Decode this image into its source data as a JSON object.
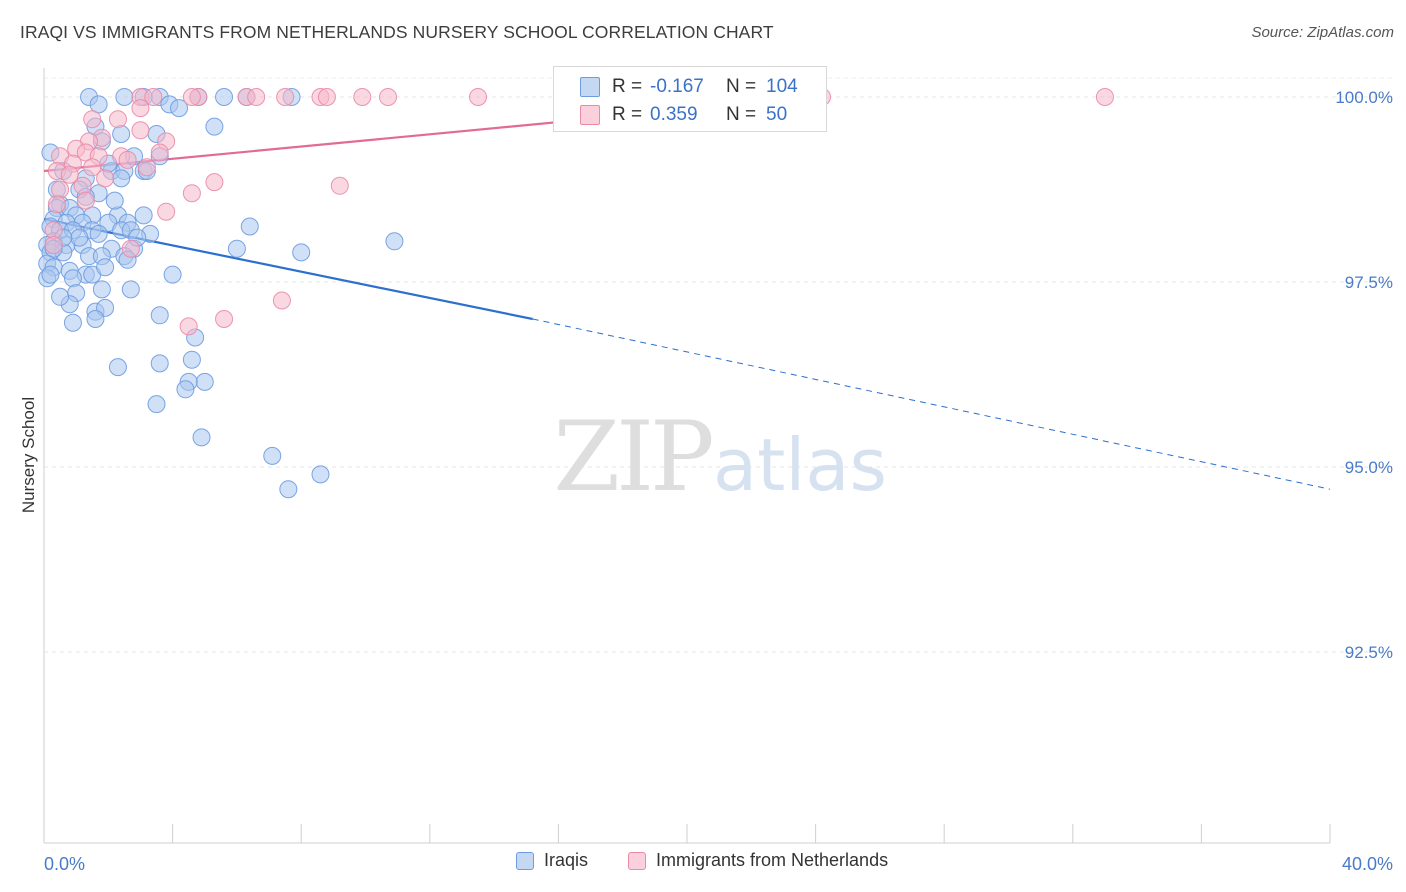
{
  "header": {
    "title": "IRAQI VS IMMIGRANTS FROM NETHERLANDS NURSERY SCHOOL CORRELATION CHART",
    "source": "Source: ZipAtlas.com"
  },
  "watermark": {
    "zip": "ZIP",
    "atlas": "atlas"
  },
  "stats": [
    {
      "r_label": "R =",
      "r_value": "-0.167",
      "n_label": "N =",
      "n_value": "104",
      "color": "#a9c6ef",
      "border": "#6d9be0"
    },
    {
      "r_label": "R =",
      "r_value": "0.359",
      "n_label": "N =",
      "n_value": "50",
      "color": "#f6b8cb",
      "border": "#e98aa8"
    }
  ],
  "legend": [
    {
      "label": "Iraqis",
      "color": "#a9c6ef",
      "border": "#6d9be0"
    },
    {
      "label": "Immigrants from Netherlands",
      "color": "#f6b8cb",
      "border": "#e98aa8"
    }
  ],
  "chart_data": {
    "type": "scatter",
    "title": "IRAQI VS IMMIGRANTS FROM NETHERLANDS NURSERY SCHOOL CORRELATION CHART",
    "xlabel": "",
    "ylabel": "Nursery School",
    "xlim": [
      0,
      40
    ],
    "ylim": [
      90.0,
      100.3
    ],
    "x_ticks": [
      0,
      4,
      8,
      12,
      16,
      20,
      24,
      28,
      32,
      36,
      40
    ],
    "x_tick_labels": {
      "0": "0.0%",
      "40": "40.0%"
    },
    "y_ticks": [
      92.5,
      95.0,
      97.5,
      100.0
    ],
    "y_tick_labels": [
      "92.5%",
      "95.0%",
      "97.5%",
      "100.0%"
    ],
    "grid": true,
    "legend_position": "bottom-center",
    "series": [
      {
        "name": "Iraqis",
        "color": "#6d9be0",
        "fill": "#a9c6ef",
        "trend": {
          "x": [
            0,
            15.2
          ],
          "y": [
            98.35,
            97.0
          ],
          "dashed_to_x": 40,
          "dashed_end_y": 94.7,
          "color": "#2d6fcf"
        },
        "points": [
          [
            1.4,
            100.0
          ],
          [
            2.5,
            100.0
          ],
          [
            3.6,
            100.0
          ],
          [
            4.8,
            100.0
          ],
          [
            5.6,
            100.0
          ],
          [
            6.3,
            100.0
          ],
          [
            7.7,
            100.0
          ],
          [
            3.1,
            100.0
          ],
          [
            1.7,
            99.9
          ],
          [
            3.9,
            99.9
          ],
          [
            4.2,
            99.85
          ],
          [
            1.6,
            99.6
          ],
          [
            5.3,
            99.6
          ],
          [
            2.4,
            99.5
          ],
          [
            3.5,
            99.5
          ],
          [
            1.8,
            99.4
          ],
          [
            2.8,
            99.2
          ],
          [
            3.6,
            99.2
          ],
          [
            2.1,
            99.0
          ],
          [
            2.5,
            99.0
          ],
          [
            3.1,
            99.0
          ],
          [
            0.6,
            99.0
          ],
          [
            1.3,
            98.9
          ],
          [
            2.4,
            98.9
          ],
          [
            1.1,
            98.75
          ],
          [
            1.7,
            98.7
          ],
          [
            1.3,
            98.65
          ],
          [
            0.5,
            98.55
          ],
          [
            0.4,
            98.5
          ],
          [
            0.8,
            98.5
          ],
          [
            1.0,
            98.4
          ],
          [
            1.5,
            98.4
          ],
          [
            2.3,
            98.4
          ],
          [
            3.1,
            98.4
          ],
          [
            0.3,
            98.35
          ],
          [
            0.7,
            98.3
          ],
          [
            1.2,
            98.3
          ],
          [
            2.0,
            98.3
          ],
          [
            2.6,
            98.3
          ],
          [
            0.2,
            98.25
          ],
          [
            0.5,
            98.2
          ],
          [
            0.9,
            98.2
          ],
          [
            1.5,
            98.2
          ],
          [
            2.4,
            98.2
          ],
          [
            2.7,
            98.2
          ],
          [
            3.3,
            98.15
          ],
          [
            6.4,
            98.25
          ],
          [
            10.9,
            98.05
          ],
          [
            0.3,
            98.05
          ],
          [
            0.7,
            98.0
          ],
          [
            1.2,
            98.0
          ],
          [
            0.1,
            98.0
          ],
          [
            2.1,
            97.95
          ],
          [
            2.8,
            97.95
          ],
          [
            6.0,
            97.95
          ],
          [
            8.0,
            97.9
          ],
          [
            0.2,
            97.9
          ],
          [
            0.6,
            97.9
          ],
          [
            1.4,
            97.85
          ],
          [
            1.8,
            97.85
          ],
          [
            2.5,
            97.85
          ],
          [
            2.6,
            97.8
          ],
          [
            0.1,
            97.75
          ],
          [
            0.3,
            97.7
          ],
          [
            0.8,
            97.65
          ],
          [
            1.3,
            97.6
          ],
          [
            1.5,
            97.6
          ],
          [
            0.9,
            97.55
          ],
          [
            0.1,
            97.55
          ],
          [
            4.0,
            97.6
          ],
          [
            1.0,
            97.35
          ],
          [
            1.8,
            97.4
          ],
          [
            2.7,
            97.4
          ],
          [
            0.8,
            97.2
          ],
          [
            1.6,
            97.1
          ],
          [
            1.9,
            97.15
          ],
          [
            3.6,
            97.05
          ],
          [
            1.6,
            97.0
          ],
          [
            4.7,
            96.75
          ],
          [
            4.6,
            96.45
          ],
          [
            3.6,
            96.4
          ],
          [
            2.3,
            96.35
          ],
          [
            5.0,
            96.15
          ],
          [
            4.5,
            96.15
          ],
          [
            4.4,
            96.05
          ],
          [
            3.5,
            95.85
          ],
          [
            4.9,
            95.4
          ],
          [
            7.1,
            95.15
          ],
          [
            8.6,
            94.9
          ],
          [
            7.6,
            94.7
          ],
          [
            0.2,
            99.25
          ],
          [
            0.4,
            98.75
          ],
          [
            0.2,
            97.6
          ],
          [
            0.5,
            97.3
          ],
          [
            0.9,
            96.95
          ],
          [
            2.0,
            99.1
          ],
          [
            3.2,
            99.0
          ],
          [
            2.9,
            98.1
          ],
          [
            1.9,
            97.7
          ],
          [
            1.1,
            98.1
          ],
          [
            0.6,
            98.1
          ],
          [
            0.3,
            97.95
          ],
          [
            1.7,
            98.15
          ],
          [
            2.2,
            98.6
          ]
        ]
      },
      {
        "name": "Immigrants from Netherlands",
        "color": "#e98aa8",
        "fill": "#f6b8cb",
        "trend": {
          "x": [
            0,
            24.2
          ],
          "y": [
            99.0,
            100.0
          ],
          "color": "#e26b94"
        },
        "points": [
          [
            3.0,
            100.0
          ],
          [
            3.4,
            100.0
          ],
          [
            4.8,
            100.0
          ],
          [
            4.6,
            100.0
          ],
          [
            6.3,
            100.0
          ],
          [
            6.6,
            100.0
          ],
          [
            7.5,
            100.0
          ],
          [
            8.6,
            100.0
          ],
          [
            8.8,
            100.0
          ],
          [
            9.9,
            100.0
          ],
          [
            10.7,
            100.0
          ],
          [
            13.5,
            100.0
          ],
          [
            16.2,
            100.0
          ],
          [
            17.0,
            100.0
          ],
          [
            24.2,
            100.0
          ],
          [
            33.0,
            100.0
          ],
          [
            3.0,
            99.85
          ],
          [
            2.3,
            99.7
          ],
          [
            1.5,
            99.7
          ],
          [
            3.0,
            99.55
          ],
          [
            1.8,
            99.45
          ],
          [
            1.4,
            99.4
          ],
          [
            3.8,
            99.4
          ],
          [
            1.0,
            99.3
          ],
          [
            1.3,
            99.25
          ],
          [
            3.6,
            99.25
          ],
          [
            0.5,
            99.2
          ],
          [
            1.7,
            99.2
          ],
          [
            2.4,
            99.2
          ],
          [
            2.6,
            99.15
          ],
          [
            0.9,
            99.1
          ],
          [
            1.5,
            99.05
          ],
          [
            3.2,
            99.05
          ],
          [
            0.4,
            99.0
          ],
          [
            0.8,
            98.95
          ],
          [
            1.9,
            98.9
          ],
          [
            5.3,
            98.85
          ],
          [
            9.2,
            98.8
          ],
          [
            1.2,
            98.8
          ],
          [
            0.5,
            98.75
          ],
          [
            4.6,
            98.7
          ],
          [
            1.3,
            98.6
          ],
          [
            0.4,
            98.55
          ],
          [
            3.8,
            98.45
          ],
          [
            0.3,
            98.2
          ],
          [
            0.3,
            98.0
          ],
          [
            2.7,
            97.95
          ],
          [
            7.4,
            97.25
          ],
          [
            5.6,
            97.0
          ],
          [
            4.5,
            96.9
          ]
        ]
      }
    ]
  }
}
